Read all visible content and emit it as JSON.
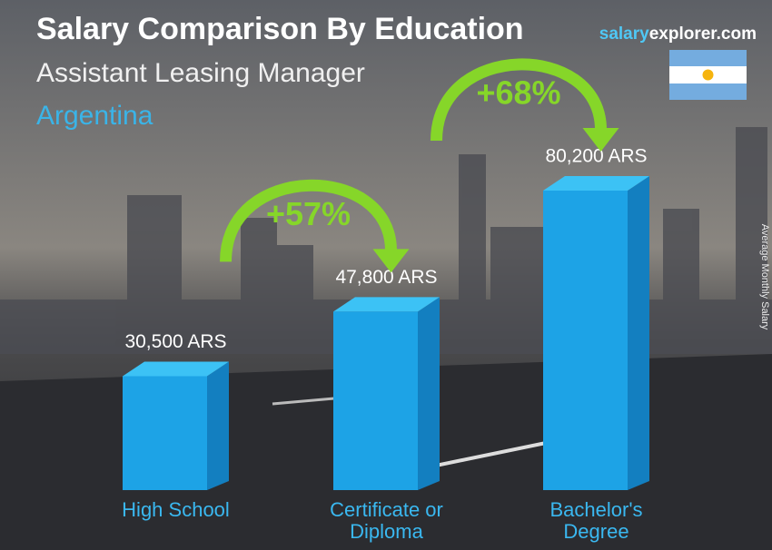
{
  "chart_data": {
    "type": "bar3d",
    "title": "Salary Comparison By Education",
    "subtitle": "Assistant Leasing Manager",
    "country": "Argentina",
    "site": {
      "part1": "salary",
      "part2": "explorer.com"
    },
    "y_label": "Average Monthly Salary",
    "categories": [
      "High School",
      "Certificate or Diploma",
      "Bachelor's Degree"
    ],
    "values": [
      30500,
      47800,
      80200
    ],
    "value_labels": [
      "30,500 ARS",
      "47,800 ARS",
      "80,200 ARS"
    ],
    "color": "#1da3e6",
    "annotations": [
      "+57%",
      "+68%"
    ],
    "annotation_color": "#86d629"
  }
}
